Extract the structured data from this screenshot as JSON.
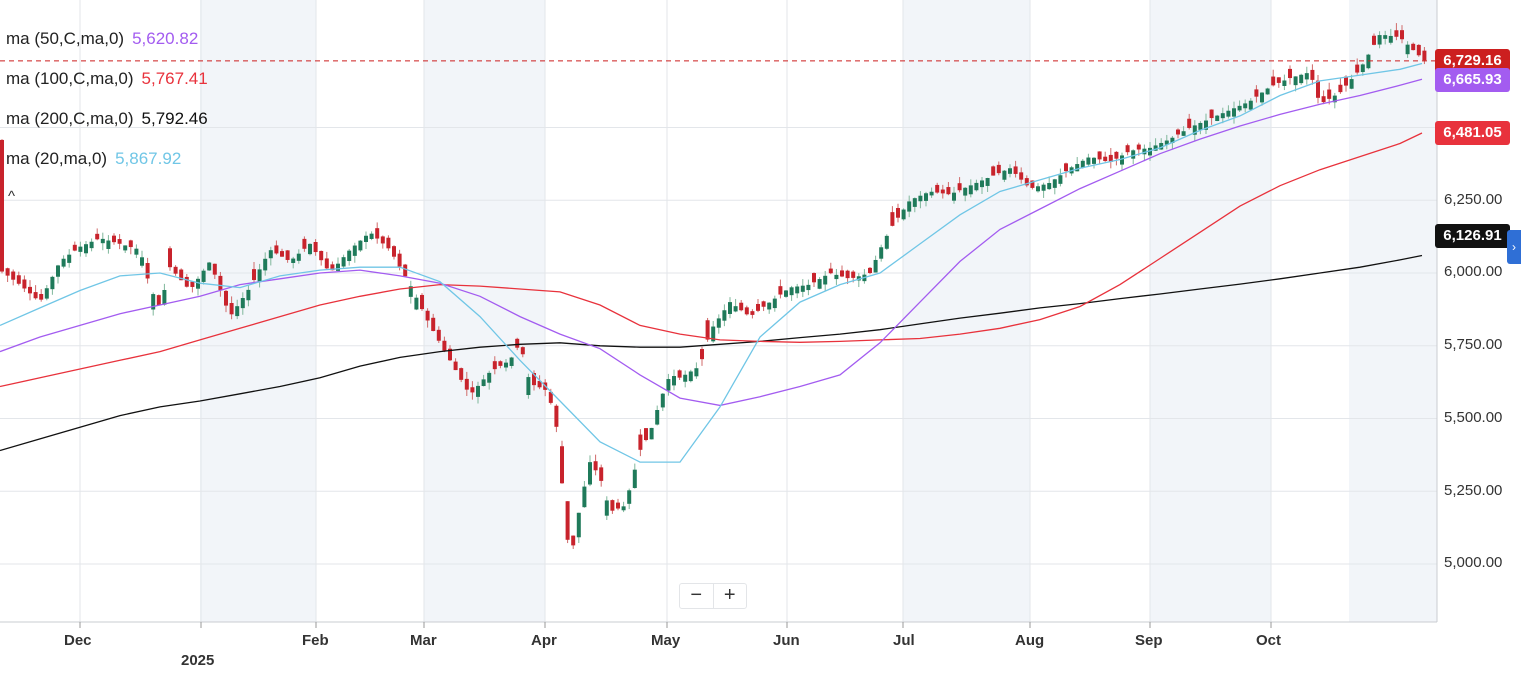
{
  "chart_data": {
    "type": "candlestick",
    "instrument_last": "6,729.16",
    "y_axis": {
      "ticks": [
        5000,
        5250,
        5500,
        5750,
        6000,
        6250
      ],
      "tick_labels": [
        "5,000.00",
        "5,250.00",
        "5,500.00",
        "5,750.00",
        "6,000.00",
        "6,250.00"
      ]
    },
    "x_axis": {
      "tick_labels": [
        "Dec",
        "2025",
        "Feb",
        "Mar",
        "Apr",
        "May",
        "Jun",
        "Jul",
        "Aug",
        "Sep",
        "Oct"
      ]
    },
    "indicators": [
      {
        "label": "ma (50,C,ma,0)",
        "value": "5,620.82",
        "color": "#a35cf0",
        "last_tag": "6,665.93"
      },
      {
        "label": "ma (100,C,ma,0)",
        "value": "5,767.41",
        "color": "#e8323c",
        "last_tag": "6,481.05"
      },
      {
        "label": "ma (200,C,ma,0)",
        "value": "5,792.46",
        "color": "#111111",
        "last_tag": "6,126.91"
      },
      {
        "label": "ma (20,ma,0)",
        "value": "5,867.92",
        "color": "#70c6e6",
        "last_tag": ""
      }
    ],
    "ma_paths": {
      "ma200": [
        [
          0,
          5390
        ],
        [
          40,
          5430
        ],
        [
          80,
          5470
        ],
        [
          120,
          5510
        ],
        [
          160,
          5540
        ],
        [
          200,
          5560
        ],
        [
          240,
          5585
        ],
        [
          280,
          5610
        ],
        [
          320,
          5640
        ],
        [
          360,
          5680
        ],
        [
          400,
          5710
        ],
        [
          440,
          5730
        ],
        [
          480,
          5745
        ],
        [
          520,
          5755
        ],
        [
          560,
          5760
        ],
        [
          600,
          5750
        ],
        [
          640,
          5745
        ],
        [
          680,
          5745
        ],
        [
          720,
          5755
        ],
        [
          760,
          5765
        ],
        [
          800,
          5778
        ],
        [
          840,
          5790
        ],
        [
          880,
          5805
        ],
        [
          920,
          5825
        ],
        [
          960,
          5845
        ],
        [
          1000,
          5862
        ],
        [
          1040,
          5880
        ],
        [
          1080,
          5895
        ],
        [
          1120,
          5912
        ],
        [
          1160,
          5928
        ],
        [
          1200,
          5945
        ],
        [
          1240,
          5962
        ],
        [
          1280,
          5980
        ],
        [
          1320,
          6000
        ],
        [
          1360,
          6020
        ],
        [
          1400,
          6045
        ],
        [
          1422,
          6060
        ]
      ],
      "ma100": [
        [
          0,
          5610
        ],
        [
          40,
          5640
        ],
        [
          80,
          5670
        ],
        [
          120,
          5700
        ],
        [
          160,
          5730
        ],
        [
          200,
          5770
        ],
        [
          240,
          5810
        ],
        [
          280,
          5850
        ],
        [
          320,
          5890
        ],
        [
          360,
          5920
        ],
        [
          400,
          5945
        ],
        [
          440,
          5960
        ],
        [
          480,
          5955
        ],
        [
          520,
          5945
        ],
        [
          560,
          5935
        ],
        [
          600,
          5890
        ],
        [
          640,
          5820
        ],
        [
          680,
          5790
        ],
        [
          720,
          5770
        ],
        [
          760,
          5765
        ],
        [
          800,
          5762
        ],
        [
          840,
          5765
        ],
        [
          880,
          5770
        ],
        [
          920,
          5775
        ],
        [
          960,
          5790
        ],
        [
          1000,
          5810
        ],
        [
          1040,
          5840
        ],
        [
          1080,
          5885
        ],
        [
          1120,
          5960
        ],
        [
          1160,
          6050
        ],
        [
          1200,
          6140
        ],
        [
          1240,
          6230
        ],
        [
          1280,
          6300
        ],
        [
          1320,
          6355
        ],
        [
          1360,
          6400
        ],
        [
          1400,
          6445
        ],
        [
          1422,
          6481
        ]
      ],
      "ma50": [
        [
          0,
          5730
        ],
        [
          40,
          5780
        ],
        [
          80,
          5820
        ],
        [
          120,
          5860
        ],
        [
          160,
          5890
        ],
        [
          200,
          5920
        ],
        [
          240,
          5960
        ],
        [
          280,
          5980
        ],
        [
          320,
          6000
        ],
        [
          360,
          6010
        ],
        [
          400,
          5990
        ],
        [
          440,
          5965
        ],
        [
          480,
          5920
        ],
        [
          520,
          5850
        ],
        [
          560,
          5790
        ],
        [
          600,
          5740
        ],
        [
          640,
          5650
        ],
        [
          680,
          5570
        ],
        [
          720,
          5545
        ],
        [
          760,
          5575
        ],
        [
          800,
          5610
        ],
        [
          840,
          5650
        ],
        [
          880,
          5760
        ],
        [
          920,
          5900
        ],
        [
          960,
          6040
        ],
        [
          1000,
          6150
        ],
        [
          1040,
          6220
        ],
        [
          1080,
          6290
        ],
        [
          1120,
          6350
        ],
        [
          1160,
          6410
        ],
        [
          1200,
          6460
        ],
        [
          1240,
          6505
        ],
        [
          1280,
          6545
        ],
        [
          1320,
          6580
        ],
        [
          1360,
          6610
        ],
        [
          1400,
          6645
        ],
        [
          1422,
          6666
        ]
      ],
      "ma20": [
        [
          0,
          5820
        ],
        [
          40,
          5880
        ],
        [
          80,
          5940
        ],
        [
          120,
          5990
        ],
        [
          160,
          6000
        ],
        [
          200,
          5965
        ],
        [
          240,
          5950
        ],
        [
          280,
          5990
        ],
        [
          320,
          6010
        ],
        [
          360,
          6020
        ],
        [
          400,
          6020
        ],
        [
          440,
          5970
        ],
        [
          480,
          5850
        ],
        [
          520,
          5700
        ],
        [
          560,
          5560
        ],
        [
          600,
          5420
        ],
        [
          640,
          5350
        ],
        [
          680,
          5350
        ],
        [
          720,
          5540
        ],
        [
          760,
          5780
        ],
        [
          800,
          5900
        ],
        [
          840,
          5960
        ],
        [
          880,
          6000
        ],
        [
          920,
          6100
        ],
        [
          960,
          6200
        ],
        [
          1000,
          6280
        ],
        [
          1040,
          6320
        ],
        [
          1080,
          6360
        ],
        [
          1120,
          6390
        ],
        [
          1160,
          6430
        ],
        [
          1200,
          6490
        ],
        [
          1240,
          6540
        ],
        [
          1280,
          6610
        ],
        [
          1320,
          6660
        ],
        [
          1360,
          6680
        ],
        [
          1400,
          6700
        ],
        [
          1422,
          6720
        ]
      ]
    },
    "close_path": [
      [
        0,
        6010
      ],
      [
        20,
        5960
      ],
      [
        40,
        5900
      ],
      [
        60,
        6040
      ],
      [
        80,
        6090
      ],
      [
        100,
        6120
      ],
      [
        120,
        6100
      ],
      [
        140,
        6080
      ],
      [
        150,
        5950
      ],
      [
        160,
        5880
      ],
      [
        170,
        6020
      ],
      [
        190,
        5940
      ],
      [
        210,
        6040
      ],
      [
        230,
        5850
      ],
      [
        250,
        5950
      ],
      [
        270,
        6080
      ],
      [
        290,
        6040
      ],
      [
        310,
        6100
      ],
      [
        330,
        6000
      ],
      [
        350,
        6080
      ],
      [
        370,
        6140
      ],
      [
        390,
        6080
      ],
      [
        410,
        5960
      ],
      [
        430,
        5820
      ],
      [
        450,
        5700
      ],
      [
        470,
        5580
      ],
      [
        490,
        5660
      ],
      [
        510,
        5700
      ],
      [
        520,
        5760
      ],
      [
        530,
        5620
      ],
      [
        545,
        5600
      ],
      [
        555,
        5520
      ],
      [
        570,
        5000
      ],
      [
        580,
        5200
      ],
      [
        590,
        5350
      ],
      [
        600,
        5300
      ],
      [
        610,
        5180
      ],
      [
        625,
        5200
      ],
      [
        640,
        5390
      ],
      [
        650,
        5450
      ],
      [
        660,
        5560
      ],
      [
        670,
        5650
      ],
      [
        680,
        5640
      ],
      [
        700,
        5680
      ],
      [
        710,
        5800
      ],
      [
        730,
        5900
      ],
      [
        750,
        5850
      ],
      [
        770,
        5900
      ],
      [
        790,
        5950
      ],
      [
        810,
        5960
      ],
      [
        830,
        6000
      ],
      [
        850,
        5980
      ],
      [
        870,
        6000
      ],
      [
        880,
        6080
      ],
      [
        890,
        6150
      ],
      [
        910,
        6250
      ],
      [
        930,
        6280
      ],
      [
        950,
        6270
      ],
      [
        970,
        6300
      ],
      [
        990,
        6330
      ],
      [
        1010,
        6360
      ],
      [
        1030,
        6290
      ],
      [
        1050,
        6310
      ],
      [
        1070,
        6360
      ],
      [
        1090,
        6400
      ],
      [
        1110,
        6380
      ],
      [
        1130,
        6420
      ],
      [
        1150,
        6430
      ],
      [
        1170,
        6460
      ],
      [
        1190,
        6500
      ],
      [
        1210,
        6530
      ],
      [
        1230,
        6560
      ],
      [
        1250,
        6590
      ],
      [
        1270,
        6640
      ],
      [
        1290,
        6670
      ],
      [
        1310,
        6690
      ],
      [
        1320,
        6580
      ],
      [
        1340,
        6620
      ],
      [
        1360,
        6700
      ],
      [
        1380,
        6820
      ],
      [
        1400,
        6810
      ],
      [
        1415,
        6760
      ],
      [
        1425,
        6729
      ]
    ],
    "last_price": 6729.16
  }
}
